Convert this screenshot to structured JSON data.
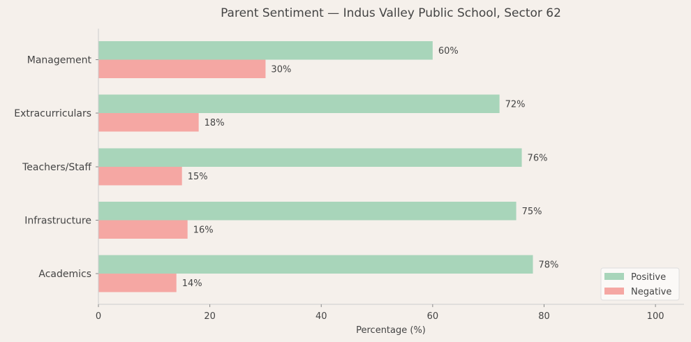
{
  "chart_data": {
    "type": "bar",
    "orientation": "horizontal",
    "title": "Parent Sentiment — Indus Valley Public School, Sector 62",
    "xlabel": "Percentage (%)",
    "ylabel": "",
    "xlim": [
      0,
      105
    ],
    "xticks": [
      0,
      20,
      40,
      60,
      80,
      100
    ],
    "categories": [
      "Academics",
      "Infrastructure",
      "Teachers/Staff",
      "Extracurriculars",
      "Management"
    ],
    "series": [
      {
        "name": "Positive",
        "color": "#a8d5ba",
        "values": [
          78,
          75,
          76,
          72,
          60
        ]
      },
      {
        "name": "Negative",
        "color": "#f5a7a3",
        "values": [
          14,
          16,
          15,
          18,
          30
        ]
      }
    ],
    "value_suffix": "%",
    "legend": "bottom-right",
    "grid": false
  }
}
